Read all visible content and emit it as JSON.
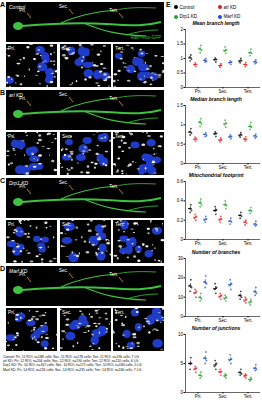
{
  "images": {
    "marker_label": "elav>mito-GFP",
    "panels": [
      {
        "letter": "A",
        "title": "Control",
        "regions": [
          "Pri.",
          "Sec.",
          "Tert."
        ]
      },
      {
        "letter": "B",
        "title": "arl KD",
        "regions": [
          "Pri.",
          "Sec.",
          "Tert."
        ]
      },
      {
        "letter": "C",
        "title": "Drp1 KD",
        "regions": [
          "Pri.",
          "Sec.",
          "Tert."
        ]
      },
      {
        "letter": "D",
        "title": "Marf KD",
        "regions": [
          "Pri.",
          "Sec.",
          "Tert."
        ]
      }
    ],
    "notes": [
      "Control: Pri. 11 ROI, n=188 cells; Sec. 11 ROI, n=178 cells; Tert. 11 ROI, n=196 cells, 7 LG",
      "arl KD: Pri. 12 ROI, n=204 cells; Sec. 12 ROI, n=190 cells; Tert. 12 ROI, n=210 cells, 6 LG",
      "Drp1 KD: Pri. 10 ROI, n=167 cells; Sec. 10 ROI, n=171 cells; Tert. 10 ROI, n=180 cells, 5 LG",
      "Marf KD: Pri. 14 ROI, n=226 cells; Sec. 14 ROI, n=231 cells; Tert. 14 ROI, n=240 cells, 7 LG"
    ]
  },
  "panel_letter": "E",
  "chart_data": [
    {
      "type": "scatter",
      "title": "Mean branch length",
      "legend": "top",
      "grid": false,
      "categories": [
        "Pri.",
        "Sec.",
        "Tert."
      ],
      "ylim": [
        0,
        2
      ],
      "yticks": [
        0,
        0.5,
        1,
        1.5,
        2
      ],
      "series": [
        {
          "name": "Control",
          "color": "#000000",
          "values": [
            [
              1.05,
              0.92,
              1.12,
              0.98
            ],
            [
              0.95,
              1.02,
              0.88,
              0.97
            ],
            [
              0.9,
              0.85,
              1.0,
              0.93
            ]
          ],
          "mean": [
            1.02,
            0.96,
            0.92
          ],
          "error": [
            0.04,
            0.03,
            0.03
          ]
        },
        {
          "name": "arl KD",
          "color": "#e41a1c",
          "values": [
            [
              0.78,
              0.85,
              0.72,
              0.8
            ],
            [
              0.75,
              0.7,
              0.82,
              0.76
            ],
            [
              0.8,
              0.72,
              0.86,
              0.78
            ]
          ],
          "mean": [
            0.79,
            0.76,
            0.79
          ],
          "error": [
            0.03,
            0.03,
            0.03
          ]
        },
        {
          "name": "Drp1 KD",
          "color": "#2ca02c",
          "values": [
            [
              1.35,
              1.2,
              1.45,
              1.28
            ],
            [
              1.25,
              1.4,
              1.18,
              1.3
            ],
            [
              1.2,
              1.1,
              1.32,
              1.18
            ]
          ],
          "mean": [
            1.32,
            1.28,
            1.2
          ],
          "error": [
            0.05,
            0.05,
            0.04
          ]
        },
        {
          "name": "Marf KD",
          "color": "#1f4fd1",
          "values": [
            [
              0.95,
              0.88,
              1.0,
              0.9
            ],
            [
              0.85,
              0.92,
              0.8,
              0.88
            ],
            [
              0.9,
              0.82,
              0.95,
              0.86
            ]
          ],
          "mean": [
            0.93,
            0.86,
            0.88
          ],
          "error": [
            0.03,
            0.03,
            0.03
          ]
        }
      ]
    },
    {
      "type": "scatter",
      "title": "Median branch length",
      "grid": false,
      "categories": [
        "Pri.",
        "Sec.",
        "Tert."
      ],
      "ylim": [
        0,
        1.5
      ],
      "yticks": [
        0,
        0.5,
        1,
        1.5
      ],
      "series": [
        {
          "name": "Control",
          "color": "#000000",
          "values": [
            [
              0.82,
              0.74,
              0.9,
              0.78
            ],
            [
              0.76,
              0.82,
              0.7,
              0.78
            ],
            [
              0.72,
              0.68,
              0.8,
              0.74
            ]
          ],
          "mean": [
            0.81,
            0.77,
            0.74
          ],
          "error": [
            0.03,
            0.03,
            0.03
          ]
        },
        {
          "name": "arl KD",
          "color": "#e41a1c",
          "values": [
            [
              0.62,
              0.68,
              0.58,
              0.64
            ],
            [
              0.6,
              0.56,
              0.66,
              0.61
            ],
            [
              0.64,
              0.58,
              0.69,
              0.62
            ]
          ],
          "mean": [
            0.63,
            0.61,
            0.63
          ],
          "error": [
            0.02,
            0.02,
            0.02
          ]
        },
        {
          "name": "Drp1 KD",
          "color": "#2ca02c",
          "values": [
            [
              1.08,
              0.96,
              1.16,
              1.02
            ],
            [
              1.0,
              1.12,
              0.94,
              1.04
            ],
            [
              0.96,
              0.88,
              1.06,
              0.94
            ]
          ],
          "mean": [
            1.06,
            1.03,
            0.96
          ],
          "error": [
            0.04,
            0.04,
            0.04
          ]
        },
        {
          "name": "Marf KD",
          "color": "#1f4fd1",
          "values": [
            [
              0.76,
              0.7,
              0.8,
              0.72
            ],
            [
              0.68,
              0.74,
              0.64,
              0.7
            ],
            [
              0.72,
              0.66,
              0.76,
              0.69
            ]
          ],
          "mean": [
            0.75,
            0.69,
            0.71
          ],
          "error": [
            0.02,
            0.02,
            0.02
          ]
        }
      ]
    },
    {
      "type": "scatter",
      "title": "Mitochondrial footprint",
      "grid": false,
      "categories": [
        "Pri.",
        "Sec.",
        "Tert."
      ],
      "ylim": [
        0,
        0.6
      ],
      "yticks": [
        0,
        0.2,
        0.4,
        0.6
      ],
      "series": [
        {
          "name": "Control",
          "color": "#000000",
          "values": [
            [
              0.32,
              0.28,
              0.36,
              0.3
            ],
            [
              0.3,
              0.34,
              0.26,
              0.31
            ],
            [
              0.25,
              0.22,
              0.28,
              0.24
            ]
          ],
          "mean": [
            0.32,
            0.3,
            0.25
          ],
          "error": [
            0.02,
            0.02,
            0.01
          ]
        },
        {
          "name": "arl KD",
          "color": "#e41a1c",
          "values": [
            [
              0.22,
              0.26,
              0.2,
              0.24
            ],
            [
              0.2,
              0.18,
              0.24,
              0.21
            ],
            [
              0.18,
              0.15,
              0.2,
              0.17
            ]
          ],
          "mean": [
            0.23,
            0.21,
            0.18
          ],
          "error": [
            0.01,
            0.01,
            0.01
          ]
        },
        {
          "name": "Drp1 KD",
          "color": "#2ca02c",
          "values": [
            [
              0.38,
              0.34,
              0.42,
              0.36
            ],
            [
              0.36,
              0.4,
              0.32,
              0.35
            ],
            [
              0.3,
              0.27,
              0.33,
              0.29
            ]
          ],
          "mean": [
            0.38,
            0.36,
            0.3
          ],
          "error": [
            0.02,
            0.02,
            0.01
          ]
        },
        {
          "name": "Marf KD",
          "color": "#1f4fd1",
          "values": [
            [
              0.2,
              0.18,
              0.24,
              0.21
            ],
            [
              0.19,
              0.16,
              0.22,
              0.18
            ],
            [
              0.16,
              0.14,
              0.19,
              0.15
            ]
          ],
          "mean": [
            0.21,
            0.19,
            0.16
          ],
          "error": [
            0.01,
            0.01,
            0.01
          ]
        }
      ]
    },
    {
      "type": "scatter",
      "title": "Number of branches",
      "grid": false,
      "categories": [
        "Pri.",
        "Sec.",
        "Tert."
      ],
      "ylim": [
        0,
        30
      ],
      "yticks": [
        0,
        10,
        20,
        30
      ],
      "series": [
        {
          "name": "Control",
          "color": "#000000",
          "values": [
            [
              16,
              13,
              19,
              15
            ],
            [
              14,
              17,
              12,
              15
            ],
            [
              11,
              9,
              13,
              10
            ]
          ],
          "mean": [
            15.75,
            14.5,
            10.75
          ],
          "error": [
            1.2,
            1.0,
            0.9
          ]
        },
        {
          "name": "arl KD",
          "color": "#e41a1c",
          "values": [
            [
              12,
              14,
              10,
              13
            ],
            [
              10,
              12,
              9,
              11
            ],
            [
              8,
              10,
              7,
              9
            ]
          ],
          "mean": [
            12.25,
            10.5,
            8.5
          ],
          "error": [
            0.9,
            0.7,
            0.7
          ]
        },
        {
          "name": "Drp1 KD",
          "color": "#2ca02c",
          "values": [
            [
              10,
              8,
              12,
              9
            ],
            [
              9,
              11,
              8,
              10
            ],
            [
              7,
              6,
              9,
              8
            ]
          ],
          "mean": [
            9.75,
            9.5,
            7.5
          ],
          "error": [
            0.9,
            0.7,
            0.7
          ]
        },
        {
          "name": "Marf KD",
          "color": "#1f4fd1",
          "values": [
            [
              18,
              15,
              21,
              17
            ],
            [
              16,
              19,
              14,
              17
            ],
            [
              13,
              11,
              15,
              12
            ]
          ],
          "mean": [
            17.75,
            16.5,
            12.75
          ],
          "error": [
            1.3,
            1.1,
            0.9
          ]
        }
      ]
    },
    {
      "type": "scatter",
      "title": "Number of junctions",
      "grid": false,
      "categories": [
        "Pri.",
        "Sec.",
        "Tert."
      ],
      "ylim": [
        0,
        10
      ],
      "yticks": [
        0,
        5,
        10
      ],
      "series": [
        {
          "name": "Control",
          "color": "#000000",
          "values": [
            [
              5,
              4,
              6,
              5
            ],
            [
              4.5,
              5.5,
              4,
              5
            ],
            [
              3.5,
              3,
              4,
              3.2
            ]
          ],
          "mean": [
            5,
            4.75,
            3.4
          ],
          "error": [
            0.4,
            0.3,
            0.2
          ]
        },
        {
          "name": "arl KD",
          "color": "#e41a1c",
          "values": [
            [
              4,
              4.5,
              3.5,
              4.2
            ],
            [
              3.5,
              4,
              3,
              3.6
            ],
            [
              2.8,
              3.2,
              2.5,
              3
            ]
          ],
          "mean": [
            4.05,
            3.53,
            2.88
          ],
          "error": [
            0.2,
            0.2,
            0.2
          ]
        },
        {
          "name": "Drp1 KD",
          "color": "#2ca02c",
          "values": [
            [
              3,
              2.5,
              3.5,
              2.8
            ],
            [
              2.8,
              3.2,
              2.5,
              3
            ],
            [
              2.2,
              2,
              2.6,
              2.3
            ]
          ],
          "mean": [
            2.95,
            2.88,
            2.28
          ],
          "error": [
            0.2,
            0.2,
            0.1
          ]
        },
        {
          "name": "Marf KD",
          "color": "#1f4fd1",
          "values": [
            [
              6,
              5,
              7,
              5.5
            ],
            [
              5.5,
              6.5,
              5,
              5.8
            ],
            [
              4.2,
              3.8,
              4.8,
              4
            ]
          ],
          "mean": [
            5.88,
            5.7,
            4.2
          ],
          "error": [
            0.4,
            0.3,
            0.2
          ]
        }
      ]
    }
  ]
}
